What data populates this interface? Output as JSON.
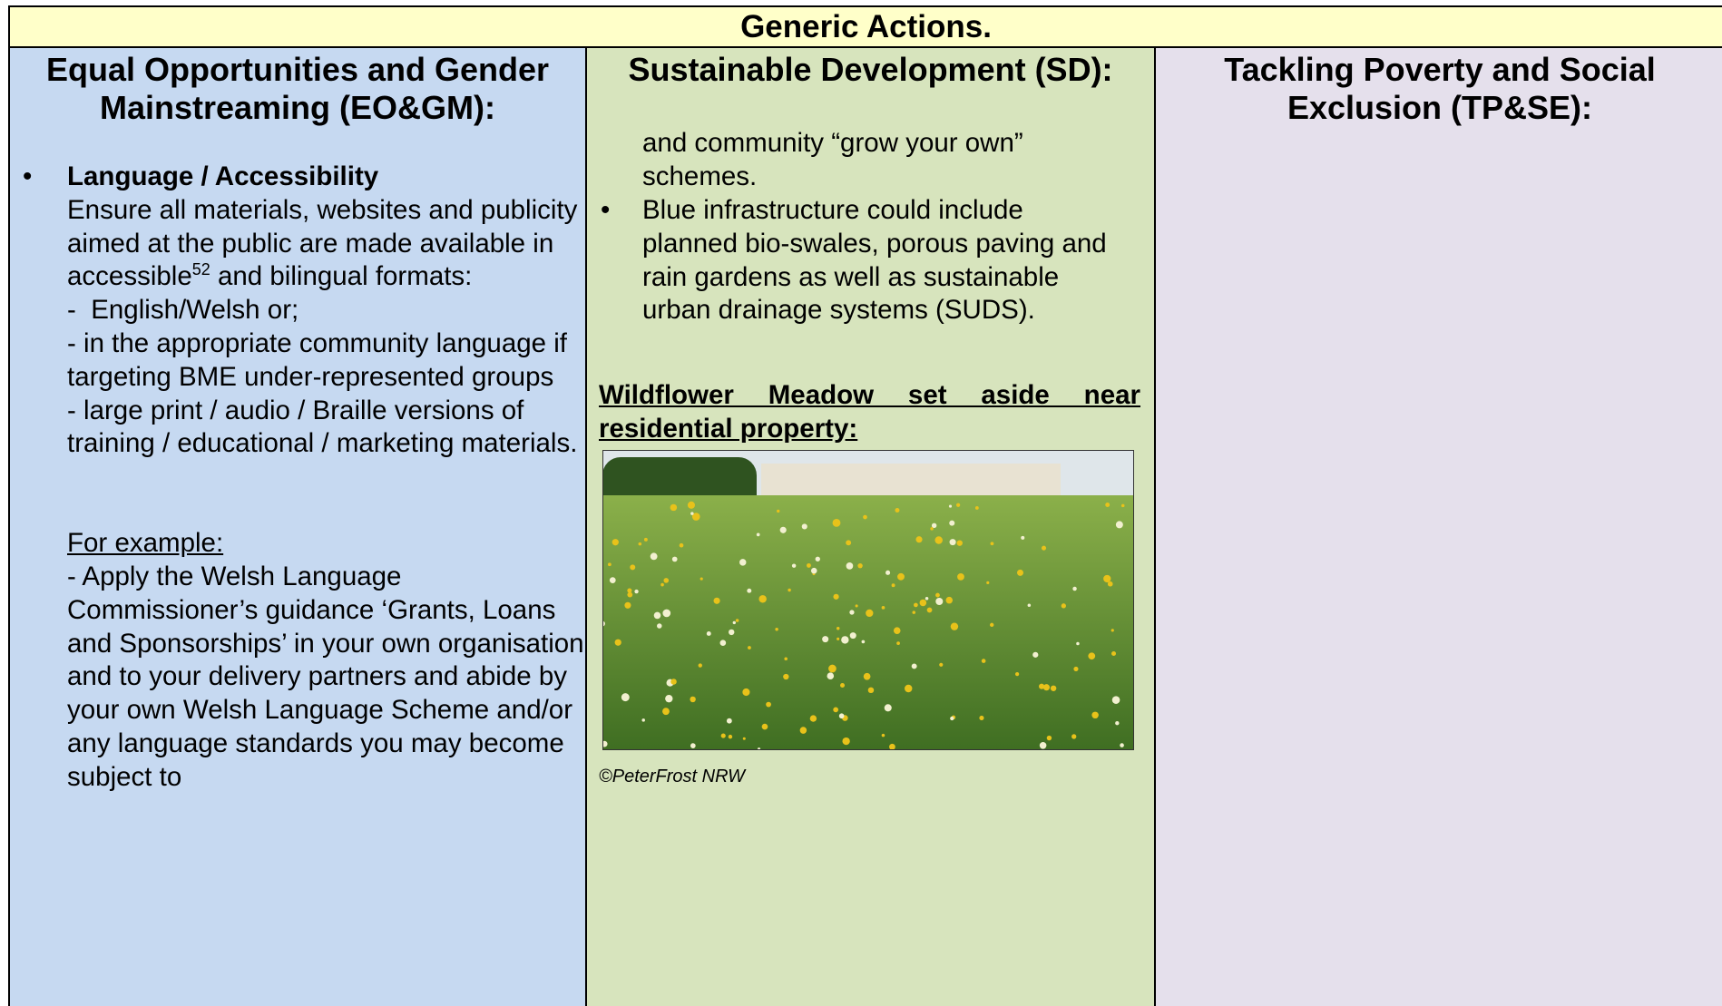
{
  "table": {
    "title": "Generic Actions.",
    "headers": [
      "Equal Opportunities and Gender Mainstreaming (EO&GM):",
      "Sustainable Development (SD):",
      "Tackling Poverty and Social Exclusion (TP&SE):"
    ],
    "eo_gm": {
      "bullet_heading": "Language / Accessibility",
      "intro": "Ensure all materials, websites and publicity aimed at the public are made available in accessible",
      "footnote_ref": "52",
      "intro_end": "and bilingual formats:",
      "items": [
        "-  English/Welsh or;",
        "- in the appropriate community language if targeting BME under-represented groups",
        "- large print / audio / Braille versions of training / educational / marketing materials."
      ],
      "example_heading": "For example:",
      "example": "- Apply the Welsh Language Commissioner’s guidance ‘Grants, Loans and Sponsorships’ in your own organisation and to your delivery partners and abide by your own Welsh Language Scheme and/or any language standards you may become subject to"
    },
    "sd": {
      "continued": "and community “grow your own” schemes.",
      "bullets": [
        "Blue infrastructure could include planned bio-swales, porous paving and rain gardens as well as sustainable urban drainage systems (SUDS)."
      ],
      "photo_heading": "Wildflower Meadow set aside near residential property:",
      "photo_credit": "©PeterFrost NRW"
    }
  }
}
